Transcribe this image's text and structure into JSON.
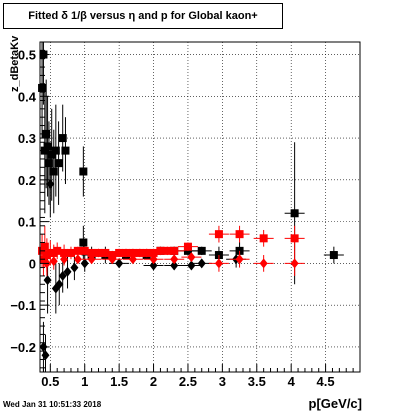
{
  "title": "Fitted δ 1/β versus η and p for Global kaon+",
  "footer": "Wed Jan 31 10:51:33 2018",
  "colors": {
    "series_black": "#000000",
    "series_red": "#ff0000"
  },
  "chart_data": {
    "type": "scatter",
    "title": "Fitted δ 1/β versus η and p for Global kaon+",
    "xlabel": "p[GeV/c]",
    "ylabel": "z_dBetaKv",
    "xlim": [
      0.35,
      5.0
    ],
    "ylim": [
      -0.26,
      0.53
    ],
    "xticks": [
      0.5,
      1,
      1.5,
      2,
      2.5,
      3,
      3.5,
      4,
      4.5
    ],
    "xtick_labels": [
      "0.5",
      "1",
      "1.5",
      "2",
      "2.5",
      "3",
      "3.5",
      "4",
      "4.5"
    ],
    "yticks": [
      -0.2,
      -0.1,
      0,
      0.1,
      0.2,
      0.3,
      0.4,
      0.5
    ],
    "ytick_labels": [
      "−0.2",
      "−0.1",
      "0",
      "0.1",
      "0.2",
      "0.3",
      "0.4",
      "0.5"
    ],
    "grid": true,
    "series": [
      {
        "marker": "square",
        "color": "#000000",
        "points": [
          {
            "x": 0.38,
            "y": 0.42,
            "ey": 0.12
          },
          {
            "x": 0.4,
            "y": 0.5,
            "ey": 0.12
          },
          {
            "x": 0.42,
            "y": 0.27,
            "ey": 0.15
          },
          {
            "x": 0.44,
            "y": 0.31,
            "ey": 0.13
          },
          {
            "x": 0.46,
            "y": 0.28,
            "ey": 0.12
          },
          {
            "x": 0.48,
            "y": 0.24,
            "ey": 0.1
          },
          {
            "x": 0.52,
            "y": 0.26,
            "ey": 0.11
          },
          {
            "x": 0.55,
            "y": 0.22,
            "ey": 0.1
          },
          {
            "x": 0.58,
            "y": 0.27,
            "ey": 0.11
          },
          {
            "x": 0.62,
            "y": 0.24,
            "ey": 0.1
          },
          {
            "x": 0.68,
            "y": 0.3,
            "ey": 0.08
          },
          {
            "x": 0.72,
            "y": 0.27,
            "ey": 0.08
          },
          {
            "x": 0.98,
            "y": 0.22,
            "ey": 0.06
          },
          {
            "x": 0.98,
            "y": 0.05,
            "ey": 0.04
          },
          {
            "x": 1.1,
            "y": 0.02,
            "ey": 0.02
          },
          {
            "x": 1.3,
            "y": 0.02,
            "ey": 0.02
          },
          {
            "x": 1.6,
            "y": 0.02,
            "ey": 0.01
          },
          {
            "x": 1.9,
            "y": 0.02,
            "ey": 0.01
          },
          {
            "x": 2.1,
            "y": 0.03,
            "ey": 0.01
          },
          {
            "x": 2.3,
            "y": 0.03,
            "ey": 0.01
          },
          {
            "x": 2.5,
            "y": 0.03,
            "ey": 0.01
          },
          {
            "x": 2.7,
            "y": 0.03,
            "ey": 0.01
          },
          {
            "x": 2.95,
            "y": 0.02,
            "ey": 0.02
          },
          {
            "x": 3.25,
            "y": 0.03,
            "ey": 0.02
          },
          {
            "x": 4.05,
            "y": 0.12,
            "ey": 0.17
          },
          {
            "x": 4.62,
            "y": 0.02,
            "ey": 0.02
          }
        ]
      },
      {
        "marker": "diamond",
        "color": "#000000",
        "points": [
          {
            "x": 0.4,
            "y": -0.2,
            "ey": 0.06
          },
          {
            "x": 0.43,
            "y": -0.22,
            "ey": 0.05
          },
          {
            "x": 0.46,
            "y": -0.04,
            "ey": 0.08
          },
          {
            "x": 0.5,
            "y": 0.19,
            "ey": 0.08
          },
          {
            "x": 0.58,
            "y": -0.06,
            "ey": 0.06
          },
          {
            "x": 0.63,
            "y": -0.05,
            "ey": 0.05
          },
          {
            "x": 0.68,
            "y": -0.03,
            "ey": 0.04
          },
          {
            "x": 0.75,
            "y": -0.02,
            "ey": 0.04
          },
          {
            "x": 0.85,
            "y": -0.01,
            "ey": 0.03
          },
          {
            "x": 1.0,
            "y": 0.0,
            "ey": 0.02
          },
          {
            "x": 1.5,
            "y": 0.0,
            "ey": 0.01
          },
          {
            "x": 2.0,
            "y": -0.005,
            "ey": 0.01
          },
          {
            "x": 2.3,
            "y": -0.005,
            "ey": 0.01
          },
          {
            "x": 2.55,
            "y": -0.005,
            "ey": 0.01
          },
          {
            "x": 2.7,
            "y": 0.0,
            "ey": 0.01
          },
          {
            "x": 3.2,
            "y": 0.01,
            "ey": 0.02
          }
        ]
      },
      {
        "marker": "square",
        "color": "#ff0000",
        "points": [
          {
            "x": 0.38,
            "y": 0.03,
            "ey": 0.04
          },
          {
            "x": 0.4,
            "y": 0.01,
            "ey": 0.04
          },
          {
            "x": 0.42,
            "y": 0.04,
            "ey": 0.05
          },
          {
            "x": 0.45,
            "y": 0.02,
            "ey": 0.04
          },
          {
            "x": 0.5,
            "y": 0.025,
            "ey": 0.03
          },
          {
            "x": 0.55,
            "y": 0.025,
            "ey": 0.02
          },
          {
            "x": 0.6,
            "y": 0.03,
            "ey": 0.02
          },
          {
            "x": 0.7,
            "y": 0.025,
            "ey": 0.02
          },
          {
            "x": 0.8,
            "y": 0.025,
            "ey": 0.015
          },
          {
            "x": 0.9,
            "y": 0.03,
            "ey": 0.01
          },
          {
            "x": 1.0,
            "y": 0.03,
            "ey": 0.01
          },
          {
            "x": 1.1,
            "y": 0.025,
            "ey": 0.01
          },
          {
            "x": 1.2,
            "y": 0.025,
            "ey": 0.01
          },
          {
            "x": 1.3,
            "y": 0.025,
            "ey": 0.01
          },
          {
            "x": 1.4,
            "y": 0.02,
            "ey": 0.01
          },
          {
            "x": 1.5,
            "y": 0.025,
            "ey": 0.01
          },
          {
            "x": 1.6,
            "y": 0.025,
            "ey": 0.01
          },
          {
            "x": 1.7,
            "y": 0.025,
            "ey": 0.01
          },
          {
            "x": 1.8,
            "y": 0.025,
            "ey": 0.01
          },
          {
            "x": 1.9,
            "y": 0.025,
            "ey": 0.01
          },
          {
            "x": 2.0,
            "y": 0.025,
            "ey": 0.01
          },
          {
            "x": 2.1,
            "y": 0.03,
            "ey": 0.01
          },
          {
            "x": 2.2,
            "y": 0.03,
            "ey": 0.01
          },
          {
            "x": 2.3,
            "y": 0.03,
            "ey": 0.01
          },
          {
            "x": 2.5,
            "y": 0.04,
            "ey": 0.01
          },
          {
            "x": 2.95,
            "y": 0.07,
            "ey": 0.02
          },
          {
            "x": 3.25,
            "y": 0.07,
            "ey": 0.02
          },
          {
            "x": 3.6,
            "y": 0.06,
            "ey": 0.02
          },
          {
            "x": 4.05,
            "y": 0.06,
            "ey": 0.03
          }
        ]
      },
      {
        "marker": "diamond",
        "color": "#ff0000",
        "points": [
          {
            "x": 0.45,
            "y": 0.0,
            "ey": 0.03
          },
          {
            "x": 0.55,
            "y": 0.005,
            "ey": 0.02
          },
          {
            "x": 0.7,
            "y": 0.01,
            "ey": 0.015
          },
          {
            "x": 0.9,
            "y": 0.01,
            "ey": 0.01
          },
          {
            "x": 1.1,
            "y": 0.01,
            "ey": 0.01
          },
          {
            "x": 1.4,
            "y": 0.01,
            "ey": 0.01
          },
          {
            "x": 1.7,
            "y": 0.01,
            "ey": 0.01
          },
          {
            "x": 2.0,
            "y": 0.01,
            "ey": 0.01
          },
          {
            "x": 2.3,
            "y": 0.01,
            "ey": 0.01
          },
          {
            "x": 2.55,
            "y": 0.015,
            "ey": 0.01
          },
          {
            "x": 2.95,
            "y": 0.0,
            "ey": 0.02
          },
          {
            "x": 3.25,
            "y": 0.01,
            "ey": 0.02
          },
          {
            "x": 3.6,
            "y": 0.0,
            "ey": 0.02
          },
          {
            "x": 4.05,
            "y": 0.0,
            "ey": 0.03
          }
        ]
      }
    ]
  }
}
